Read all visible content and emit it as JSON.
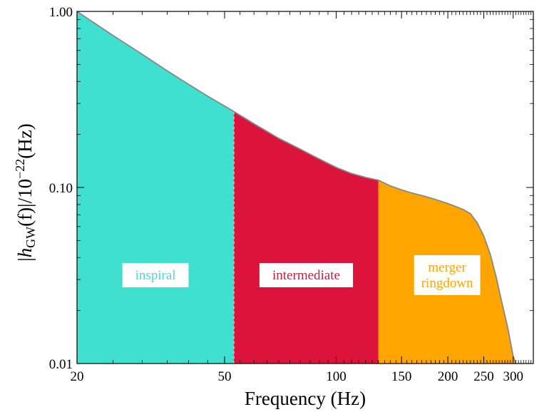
{
  "chart_data": {
    "type": "area",
    "x_scale": "log",
    "y_scale": "log",
    "xlabel": "Frequency (Hz)",
    "ylabel_parts": {
      "open": "|",
      "h": "h",
      "sub": "GW",
      "fpart": "(f)",
      "close": "|/10",
      "exp": "−22",
      "unit": "(Hz)"
    },
    "xlim": [
      20,
      340
    ],
    "ylim": [
      0.01,
      1.0
    ],
    "x_ticks": [
      {
        "value": 20,
        "label": "20"
      },
      {
        "value": 50,
        "label": "50"
      },
      {
        "value": 100,
        "label": "100"
      },
      {
        "value": 150,
        "label": "150"
      },
      {
        "value": 200,
        "label": "200"
      },
      {
        "value": 250,
        "label": "250"
      },
      {
        "value": 300,
        "label": "300"
      }
    ],
    "y_ticks": [
      {
        "value": 0.01,
        "label": "0.01"
      },
      {
        "value": 0.1,
        "label": "0.10"
      },
      {
        "value": 1.0,
        "label": "1.00"
      }
    ],
    "curve": {
      "x": [
        20,
        25,
        30,
        35,
        40,
        45,
        50,
        53,
        60,
        70,
        80,
        90,
        100,
        110,
        120,
        130,
        140,
        150,
        160,
        170,
        180,
        190,
        200,
        210,
        220,
        230,
        240,
        250,
        260,
        270,
        280,
        290,
        300,
        305
      ],
      "y": [
        1.0,
        0.73,
        0.57,
        0.46,
        0.385,
        0.33,
        0.29,
        0.27,
        0.23,
        0.19,
        0.165,
        0.145,
        0.13,
        0.12,
        0.114,
        0.11,
        0.102,
        0.097,
        0.093,
        0.09,
        0.087,
        0.084,
        0.081,
        0.078,
        0.075,
        0.071,
        0.063,
        0.053,
        0.042,
        0.031,
        0.022,
        0.016,
        0.011,
        0.01
      ]
    },
    "regions": [
      {
        "label": [
          "inspiral"
        ],
        "x_start": 20,
        "x_end": 53,
        "color": "#40E0D0",
        "label_color": "#40E0D0"
      },
      {
        "label": [
          "intermediate"
        ],
        "x_start": 53,
        "x_end": 130,
        "color": "#DC143C",
        "label_color": "#DC143C"
      },
      {
        "label": [
          "merger",
          "ringdown"
        ],
        "x_start": 130,
        "x_end": 305,
        "color": "#FFA500",
        "label_color": "#FFA500"
      }
    ],
    "curve_color": "#888888",
    "grid": false,
    "legend": "none"
  }
}
